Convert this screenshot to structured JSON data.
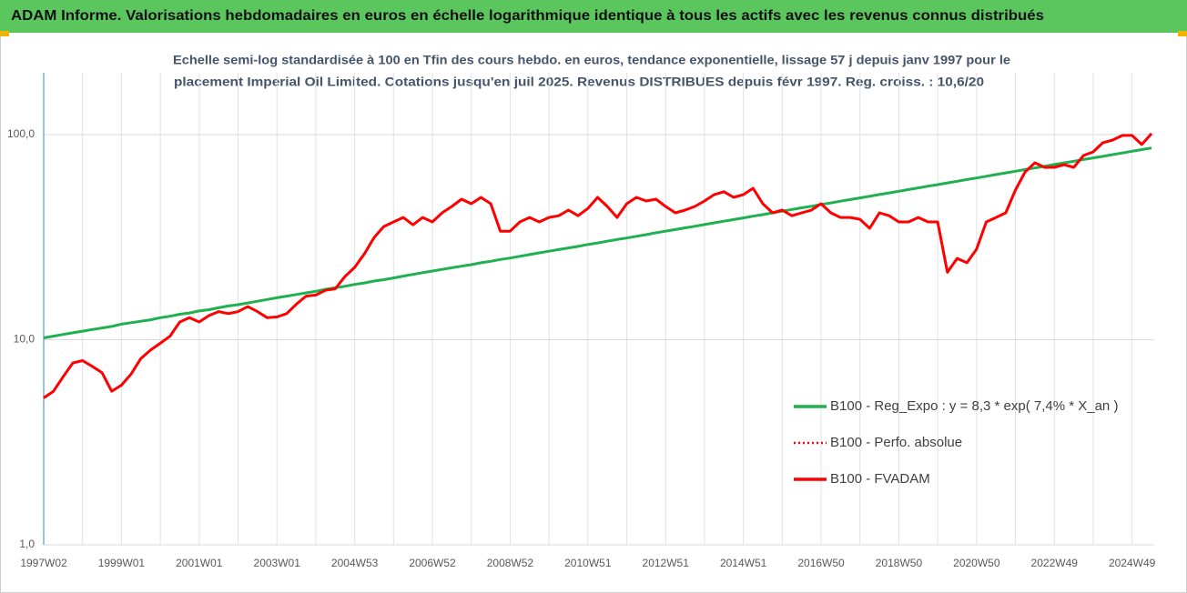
{
  "chart_data": {
    "type": "line",
    "title": "ADAM Informe. Valorisations hebdomadaires en euros en échelle logarithmique identique à tous les actifs avec les revenus connus distribués",
    "subtitle": [
      "Echelle semi-log standardisée à 100 en Tfin des cours hebdo. en euros, tendance exponentielle, lissage 57 j depuis janv 1997 pour le",
      "placement Imperial Oil Limited. Cotations jusqu'en juil 2025. Revenus DISTRIBUES depuis févr 1997. Reg. croiss. : 10,6/20"
    ],
    "categories": [
      "1997W02",
      null,
      null,
      null,
      null,
      null,
      null,
      null,
      "1999W01",
      null,
      null,
      null,
      null,
      null,
      null,
      null,
      "2001W01",
      null,
      null,
      null,
      null,
      null,
      null,
      null,
      "2003W01",
      null,
      null,
      null,
      null,
      null,
      null,
      null,
      "2004W53",
      null,
      null,
      null,
      null,
      null,
      null,
      null,
      "2006W52",
      null,
      null,
      null,
      null,
      null,
      null,
      null,
      "2008W52",
      null,
      null,
      null,
      null,
      null,
      null,
      null,
      "2010W51",
      null,
      null,
      null,
      null,
      null,
      null,
      null,
      "2012W51",
      null,
      null,
      null,
      null,
      null,
      null,
      null,
      "2014W51",
      null,
      null,
      null,
      null,
      null,
      null,
      null,
      "2016W50",
      null,
      null,
      null,
      null,
      null,
      null,
      null,
      "2018W50",
      null,
      null,
      null,
      null,
      null,
      null,
      null,
      "2020W50",
      null,
      null,
      null,
      null,
      null,
      null,
      null,
      "2022W49",
      null,
      null,
      null,
      null,
      null,
      null,
      null,
      "2024W49",
      null,
      null
    ],
    "series": [
      {
        "name": "B100 - Reg_Expo : y = 8,3 * exp( 7,4% *  X_an )",
        "color": "#1fb04f",
        "style": "solid",
        "values": [
          10.2,
          10.4,
          10.6,
          10.8,
          11.0,
          11.2,
          11.4,
          11.6,
          11.9,
          12.1,
          12.3,
          12.5,
          12.8,
          13.0,
          13.3,
          13.5,
          13.8,
          14.0,
          14.3,
          14.6,
          14.8,
          15.1,
          15.4,
          15.7,
          16.0,
          16.3,
          16.6,
          16.9,
          17.2,
          17.6,
          17.9,
          18.2,
          18.6,
          18.9,
          19.3,
          19.6,
          20.0,
          20.4,
          20.8,
          21.2,
          21.6,
          22.0,
          22.4,
          22.8,
          23.2,
          23.7,
          24.1,
          24.6,
          25.0,
          25.5,
          26.0,
          26.5,
          27.0,
          27.5,
          28.0,
          28.5,
          29.1,
          29.6,
          30.2,
          30.8,
          31.3,
          31.9,
          32.5,
          33.2,
          33.8,
          34.4,
          35.1,
          35.7,
          36.4,
          37.1,
          37.8,
          38.5,
          39.2,
          40.0,
          40.7,
          41.5,
          42.3,
          43.1,
          43.9,
          44.7,
          45.6,
          46.4,
          47.3,
          48.2,
          49.1,
          50.0,
          51.0,
          51.9,
          52.9,
          53.9,
          54.9,
          56.0,
          57.0,
          58.1,
          59.2,
          60.3,
          61.4,
          62.6,
          63.8,
          65.0,
          66.2,
          67.5,
          68.7,
          70.0,
          71.4,
          72.7,
          74.1,
          75.5,
          76.9,
          78.3,
          79.8,
          81.3,
          82.9,
          84.4,
          86.0
        ]
      },
      {
        "name": "B100 - Perfo. absolue",
        "color": "#ff0000",
        "style": "dotted",
        "values": [
          5.2,
          5.6,
          6.6,
          7.7,
          7.9,
          7.4,
          6.9,
          5.6,
          6.0,
          6.8,
          8.1,
          8.9,
          9.6,
          10.4,
          12.2,
          12.8,
          12.2,
          13.1,
          13.7,
          13.4,
          13.7,
          14.5,
          13.7,
          12.8,
          12.9,
          13.4,
          14.9,
          16.3,
          16.5,
          17.4,
          17.7,
          20.3,
          22.5,
          26.2,
          31.5,
          35.6,
          37.5,
          39.4,
          36.3,
          39.4,
          37.5,
          41.5,
          44.6,
          48.4,
          46.0,
          49.4,
          46.0,
          33.8,
          33.8,
          37.5,
          39.4,
          37.5,
          39.4,
          40.2,
          42.8,
          40.2,
          43.6,
          49.4,
          44.6,
          39.4,
          46.0,
          49.4,
          47.4,
          48.4,
          44.6,
          41.5,
          42.8,
          44.6,
          47.4,
          50.9,
          52.6,
          49.4,
          50.9,
          54.7,
          46.0,
          41.5,
          42.8,
          40.2,
          41.5,
          42.8,
          46.0,
          41.5,
          39.4,
          39.4,
          38.6,
          34.9,
          41.5,
          40.2,
          37.5,
          37.5,
          39.4,
          37.5,
          37.5,
          21.3,
          24.9,
          23.7,
          27.6,
          37.5,
          39.4,
          41.5,
          53.6,
          65.7,
          72.8,
          69.2,
          69.2,
          71.3,
          69.2,
          79.0,
          82.3,
          91.2,
          94.0,
          99.0,
          99.0,
          89.4,
          101.0
        ]
      },
      {
        "name": "B100 - FVADAM",
        "color": "#ff0000",
        "style": "solid",
        "values": [
          5.2,
          5.6,
          6.6,
          7.7,
          7.9,
          7.4,
          6.9,
          5.6,
          6.0,
          6.8,
          8.1,
          8.9,
          9.6,
          10.4,
          12.2,
          12.8,
          12.2,
          13.1,
          13.7,
          13.4,
          13.7,
          14.5,
          13.7,
          12.8,
          12.9,
          13.4,
          14.9,
          16.3,
          16.5,
          17.4,
          17.7,
          20.3,
          22.5,
          26.2,
          31.5,
          35.6,
          37.5,
          39.4,
          36.3,
          39.4,
          37.5,
          41.5,
          44.6,
          48.4,
          46.0,
          49.4,
          46.0,
          33.8,
          33.8,
          37.5,
          39.4,
          37.5,
          39.4,
          40.2,
          42.8,
          40.2,
          43.6,
          49.4,
          44.6,
          39.4,
          46.0,
          49.4,
          47.4,
          48.4,
          44.6,
          41.5,
          42.8,
          44.6,
          47.4,
          50.9,
          52.6,
          49.4,
          50.9,
          54.7,
          46.0,
          41.5,
          42.8,
          40.2,
          41.5,
          42.8,
          46.0,
          41.5,
          39.4,
          39.4,
          38.6,
          34.9,
          41.5,
          40.2,
          37.5,
          37.5,
          39.4,
          37.5,
          37.5,
          21.3,
          24.9,
          23.7,
          27.6,
          37.5,
          39.4,
          41.5,
          53.6,
          65.7,
          72.8,
          69.2,
          69.2,
          71.3,
          69.2,
          79.0,
          82.3,
          91.2,
          94.0,
          99.0,
          99.0,
          89.4,
          101.0
        ]
      }
    ],
    "ylim": [
      1,
      200
    ],
    "log_y": true,
    "yticks": [
      {
        "value": 1,
        "label": "1,0"
      },
      {
        "value": 10,
        "label": "10,0"
      },
      {
        "value": 100,
        "label": "100,0"
      }
    ],
    "grid": true,
    "legend": "right"
  }
}
